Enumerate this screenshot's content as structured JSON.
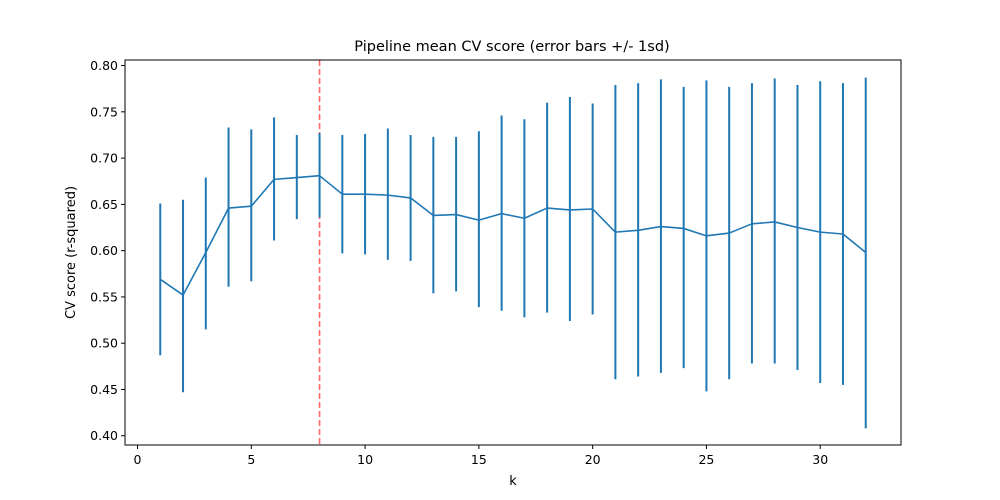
{
  "chart_data": {
    "type": "line",
    "title": "Pipeline mean CV score (error bars +/- 1sd)",
    "xlabel": "k",
    "ylabel": "CV score (r-squared)",
    "xlim": [
      -0.55,
      33.55
    ],
    "ylim": [
      0.39,
      0.806
    ],
    "x_ticks": [
      0,
      5,
      10,
      15,
      20,
      25,
      30
    ],
    "x_tick_labels": [
      "0",
      "5",
      "10",
      "15",
      "20",
      "25",
      "30"
    ],
    "y_ticks": [
      0.4,
      0.45,
      0.5,
      0.55,
      0.6,
      0.65,
      0.7,
      0.75,
      0.8
    ],
    "y_tick_labels": [
      "0.40",
      "0.45",
      "0.50",
      "0.55",
      "0.60",
      "0.65",
      "0.70",
      "0.75",
      "0.80"
    ],
    "grid": false,
    "line_color": "#1f77b4",
    "x": [
      1,
      2,
      3,
      4,
      5,
      6,
      7,
      8,
      9,
      10,
      11,
      12,
      13,
      14,
      15,
      16,
      17,
      18,
      19,
      20,
      21,
      22,
      23,
      24,
      25,
      26,
      27,
      28,
      29,
      30,
      31,
      32
    ],
    "mean": [
      0.569,
      0.552,
      0.598,
      0.646,
      0.648,
      0.677,
      0.679,
      0.681,
      0.661,
      0.661,
      0.66,
      0.657,
      0.638,
      0.639,
      0.633,
      0.64,
      0.635,
      0.646,
      0.644,
      0.645,
      0.62,
      0.622,
      0.626,
      0.624,
      0.616,
      0.619,
      0.629,
      0.631,
      0.625,
      0.62,
      0.618,
      0.598
    ],
    "lower": [
      0.487,
      0.447,
      0.515,
      0.561,
      0.567,
      0.611,
      0.634,
      0.636,
      0.597,
      0.596,
      0.59,
      0.589,
      0.554,
      0.556,
      0.539,
      0.535,
      0.528,
      0.533,
      0.524,
      0.531,
      0.461,
      0.464,
      0.468,
      0.473,
      0.448,
      0.461,
      0.478,
      0.478,
      0.471,
      0.457,
      0.455,
      0.408
    ],
    "upper": [
      0.651,
      0.655,
      0.679,
      0.733,
      0.731,
      0.744,
      0.725,
      0.727,
      0.725,
      0.726,
      0.732,
      0.725,
      0.723,
      0.723,
      0.729,
      0.746,
      0.742,
      0.76,
      0.766,
      0.759,
      0.779,
      0.781,
      0.785,
      0.777,
      0.784,
      0.777,
      0.781,
      0.786,
      0.779,
      0.783,
      0.781,
      0.787
    ],
    "reference_line": {
      "x": 8,
      "color": "#ff0000",
      "style": "dashed"
    }
  }
}
